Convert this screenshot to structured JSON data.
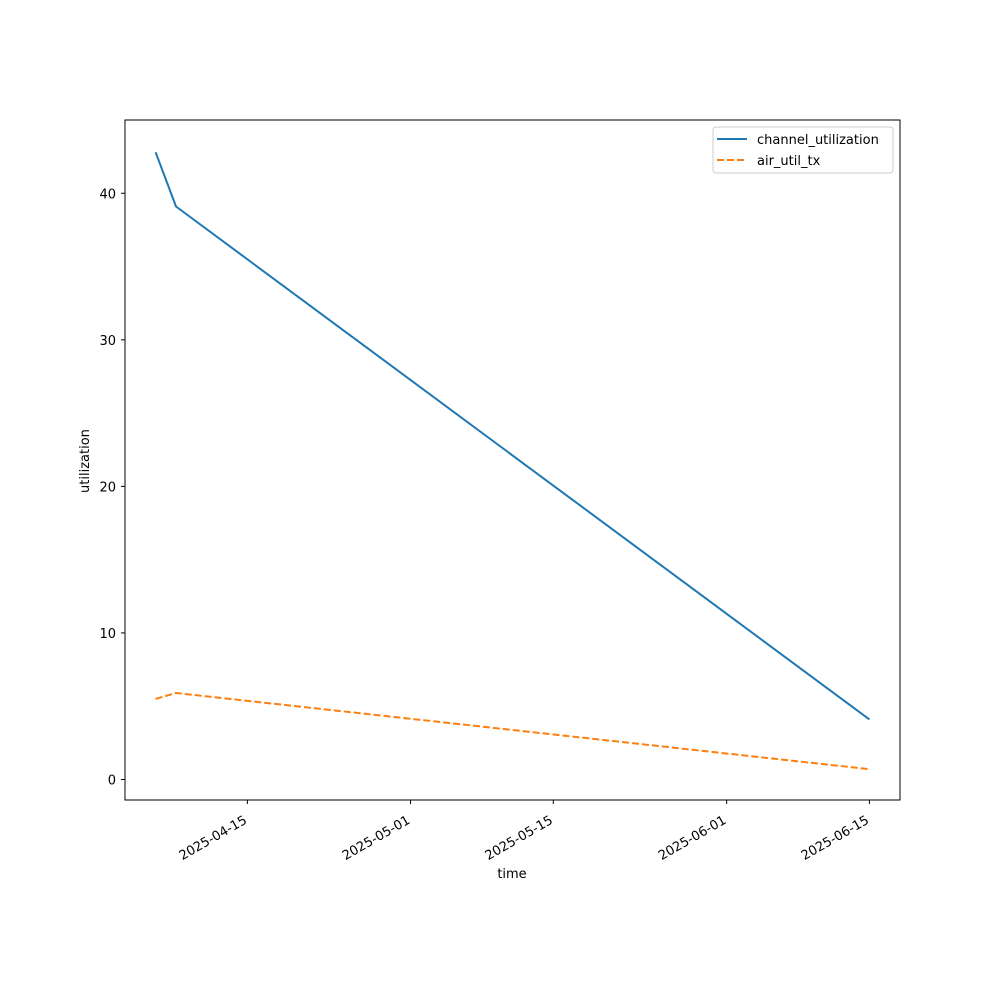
{
  "chart_data": {
    "type": "line",
    "title": "",
    "xlabel": "time",
    "ylabel": "utilization",
    "x_type": "date",
    "xlim": [
      "2025-04-03",
      "2025-06-18"
    ],
    "ylim": [
      -1.4,
      45
    ],
    "x_ticks": [
      "2025-04-15",
      "2025-05-01",
      "2025-05-15",
      "2025-06-01",
      "2025-06-15"
    ],
    "y_ticks": [
      0,
      10,
      20,
      30,
      40
    ],
    "grid": false,
    "legend_position": "top-right",
    "x": [
      "2025-04-06",
      "2025-04-08",
      "2025-06-15"
    ],
    "series": [
      {
        "name": "channel_utilization",
        "values": [
          42.8,
          39.1,
          4.1
        ],
        "color": "#1f77b4",
        "style": "solid"
      },
      {
        "name": "air_util_tx",
        "values": [
          5.5,
          5.9,
          0.7
        ],
        "color": "#ff7f0e",
        "style": "dashed"
      }
    ]
  }
}
